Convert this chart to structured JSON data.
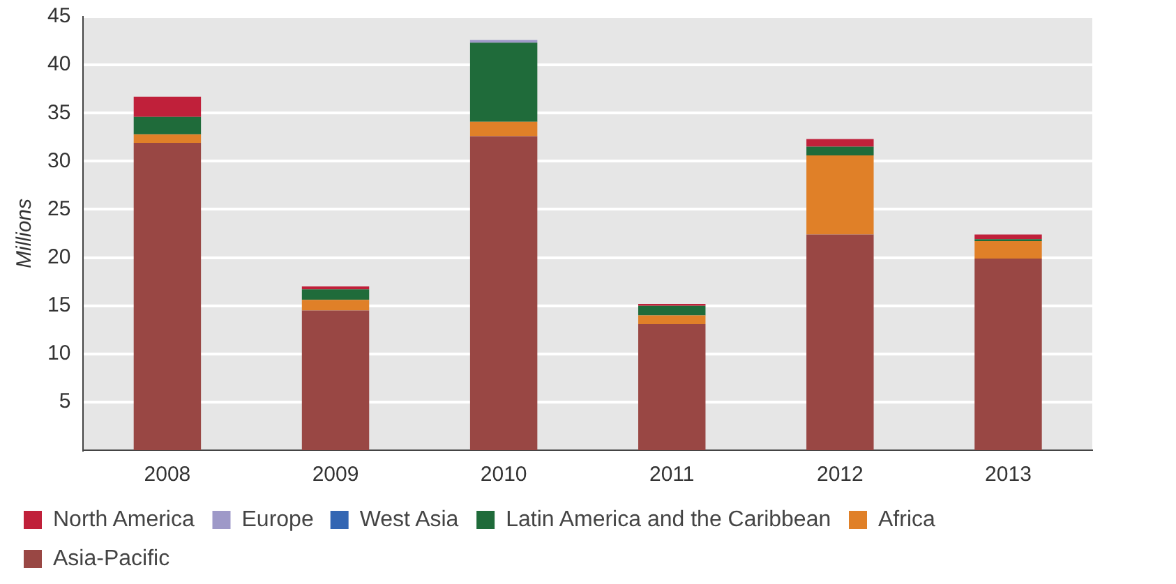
{
  "chart_data": {
    "type": "bar",
    "ylabel": "Millions",
    "categories": [
      "2008",
      "2009",
      "2010",
      "2011",
      "2012",
      "2013"
    ],
    "stacked": true,
    "ylim": [
      0,
      45
    ],
    "yticks": [
      5,
      10,
      15,
      20,
      25,
      30,
      35,
      40,
      45
    ],
    "grid": "y",
    "legend": "bottom left",
    "series": [
      {
        "name": "Asia-Pacific",
        "color": "#994744",
        "values": [
          31.9,
          14.5,
          32.6,
          13.1,
          22.4,
          19.9
        ]
      },
      {
        "name": "Africa",
        "color": "#e08028",
        "values": [
          0.9,
          1.1,
          1.5,
          0.9,
          8.2,
          1.8
        ]
      },
      {
        "name": "Latin America and the Caribbean",
        "color": "#1f6b3a",
        "values": [
          1.8,
          1.1,
          8.2,
          1.0,
          0.9,
          0.2
        ]
      },
      {
        "name": "West Asia",
        "color": "#3366b3",
        "values": [
          0,
          0,
          0,
          0,
          0,
          0
        ]
      },
      {
        "name": "Europe",
        "color": "#9e99c8",
        "values": [
          0,
          0,
          0.3,
          0,
          0,
          0
        ]
      },
      {
        "name": "North America",
        "color": "#c0203a",
        "values": [
          2.1,
          0.3,
          0,
          0.2,
          0.8,
          0.5
        ]
      }
    ]
  }
}
